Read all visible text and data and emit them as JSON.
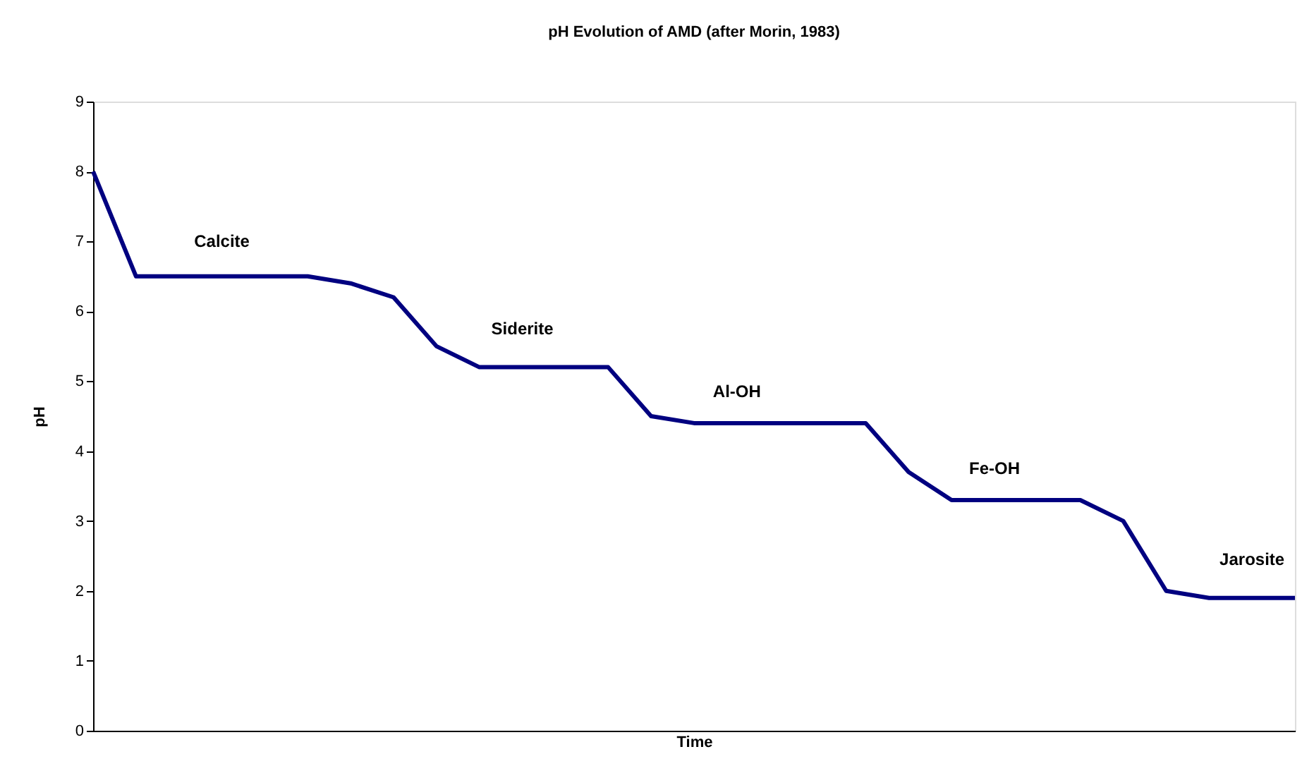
{
  "chart_data": {
    "type": "line",
    "title": "pH Evolution of AMD (after Morin, 1983)",
    "xlabel": "Time",
    "ylabel": "pH",
    "categories": [
      null,
      null,
      null,
      null,
      null,
      null,
      null,
      null,
      null,
      null,
      null,
      null,
      null,
      null,
      null,
      null,
      null,
      null,
      null,
      null,
      null,
      null,
      null,
      null,
      null,
      null,
      null,
      null,
      null
    ],
    "series": [
      {
        "color": "#000080",
        "values": [
          8,
          6.5,
          6.5,
          6.5,
          6.5,
          6.5,
          6.4,
          6.2,
          5.5,
          5.2,
          5.2,
          5.2,
          5.2,
          4.5,
          4.4,
          4.4,
          4.4,
          4.4,
          4.4,
          3.7,
          3.3,
          3.3,
          3.3,
          3.3,
          3.0,
          2.0,
          1.9,
          1.9,
          1.9
        ]
      }
    ],
    "ylim": [
      0,
      9
    ],
    "yticks": [
      0,
      1,
      2,
      3,
      4,
      5,
      6,
      7,
      8,
      9
    ],
    "line_style": "solid",
    "annotations": [
      "Calcite",
      "Siderite",
      "Al-OH",
      "Fe-OH",
      "Jarosite"
    ]
  }
}
